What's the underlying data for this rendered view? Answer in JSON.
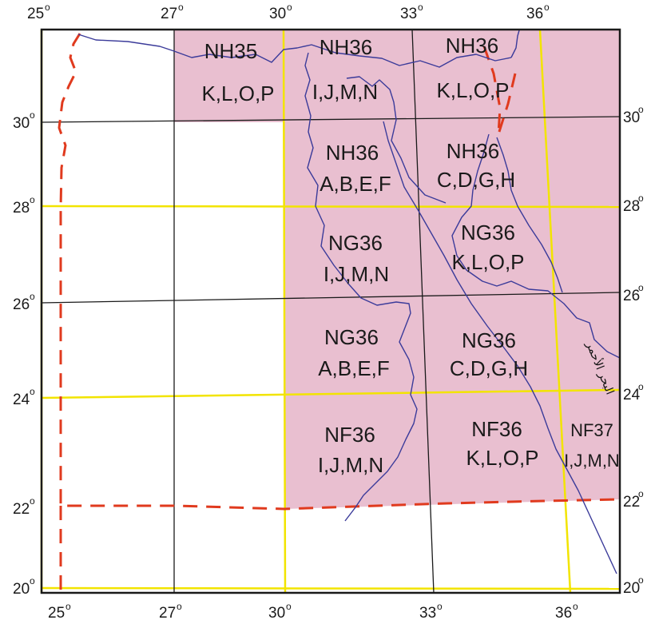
{
  "map": {
    "colors": {
      "sheet_fill": "#e9bfd0",
      "yellow_grid": "#f2e400",
      "black_grid": "#1a1a1a",
      "border": "#e03a1e",
      "river_coast": "#3b3b9a",
      "frame": "#1a1a1a"
    },
    "degree_symbol": "o",
    "top_labels": [
      "25",
      "27",
      "30",
      "33",
      "36"
    ],
    "bottom_labels": [
      "25",
      "27",
      "30",
      "33",
      "36"
    ],
    "left_labels": [
      "30",
      "28",
      "26",
      "24",
      "22",
      "20"
    ],
    "right_labels": [
      "30",
      "28",
      "26",
      "24",
      "22",
      "20"
    ],
    "sheets": [
      {
        "id": "nh35-klop",
        "line1": "NH35",
        "line2": "K,L,O,P"
      },
      {
        "id": "nh36-ijmn",
        "line1": "NH36",
        "line2": "I,J,M,N"
      },
      {
        "id": "nh36-klop",
        "line1": "NH36",
        "line2": "K,L,O,P"
      },
      {
        "id": "nh36-abef",
        "line1": "NH36",
        "line2": "A,B,E,F"
      },
      {
        "id": "nh36-cdgh",
        "line1": "NH36",
        "line2": "C,D,G,H"
      },
      {
        "id": "ng36-ijmn",
        "line1": "NG36",
        "line2": "I,J,M,N"
      },
      {
        "id": "ng36-klop",
        "line1": "NG36",
        "line2": "K,L,O,P"
      },
      {
        "id": "ng36-abef",
        "line1": "NG36",
        "line2": "A,B,E,F"
      },
      {
        "id": "ng36-cdgh",
        "line1": "NG36",
        "line2": "C,D,G,H"
      },
      {
        "id": "nf36-ijmn",
        "line1": "NF36",
        "line2": "I,J,M,N"
      },
      {
        "id": "nf36-klop",
        "line1": "NF36",
        "line2": "K,L,O,P"
      },
      {
        "id": "nf37-ijmn",
        "line1": "NF37",
        "line2": "I,J,M,N"
      }
    ],
    "sea_label": "البحر الأحمر"
  }
}
